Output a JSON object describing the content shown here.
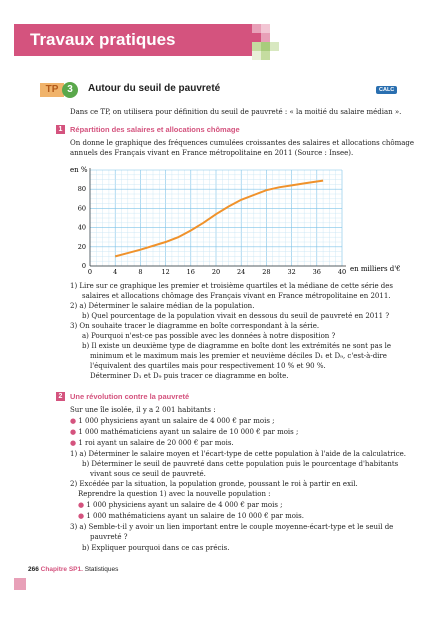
{
  "header": {
    "title": "Travaux pratiques"
  },
  "tp": {
    "label": "TP",
    "number": "3",
    "title": "Autour du seuil de pauvreté",
    "badge": "CALC"
  },
  "intro": "Dans ce TP, on utilisera pour définition du seuil de pauvreté : « la moitié du salaire médian ».",
  "section1": {
    "number": "1",
    "title": "Répartition des salaires et allocations chômage",
    "line1": "On donne le graphique des fréquences cumulées croissantes des salaires et allocations chômage",
    "line2": "annuels des Français vivant en France métropolitaine en 2011 (Source : Insee)."
  },
  "chart_data": {
    "type": "line",
    "ylabel": "en %",
    "xlabel": "en milliers d'€",
    "xlim": [
      0,
      40
    ],
    "ylim": [
      0,
      100
    ],
    "x_ticks": [
      "0",
      "4",
      "8",
      "12",
      "16",
      "20",
      "24",
      "28",
      "32",
      "36",
      "40"
    ],
    "y_ticks": [
      "0",
      "20",
      "40",
      "60",
      "80"
    ],
    "grid": true,
    "color": "#f0922b",
    "x": [
      4,
      8,
      12,
      14,
      16,
      18,
      20,
      22,
      24,
      26,
      28,
      30,
      32,
      34,
      36,
      37
    ],
    "y": [
      10,
      17,
      25,
      30,
      37,
      45,
      54,
      62,
      69,
      74,
      79,
      82,
      84,
      86,
      88,
      89
    ]
  },
  "questions1": {
    "q1a": "1) Lire sur ce graphique les premier et troisième quartiles et la médiane de cette série des",
    "q1b": "salaires et allocations chômage des Français vivant en France métropolitaine en 2011.",
    "q2a": "2) a) Déterminer le salaire médian de la population.",
    "q2b": "b) Quel pourcentage de la population vivait en dessous du seuil de pauvreté en 2011 ?",
    "q3": "3) On souhaite tracer le diagramme en boîte correspondant à la série.",
    "q3a": "a) Pourquoi n'est-ce pas possible avec les données à notre disposition ?",
    "q3b1": "b) Il existe un deuxième type de diagramme en boîte dont les extrémités ne sont pas le",
    "q3b2": "minimum et le maximum mais les premier et neuvième déciles D₁ et D₉, c'est-à-dire",
    "q3b3": "l'équivalent des quartiles mais pour respectivement 10 % et 90 %.",
    "q3b4": "Déterminer D₁ et D₉ puis tracer ce diagramme en boîte."
  },
  "section2": {
    "number": "2",
    "title": "Une révolution contre la pauvreté",
    "intro": "Sur une île isolée, il y a 2 001 habitants :",
    "b1": "1 000 physiciens ayant un salaire de 4 000 € par mois ;",
    "b2": "1 000 mathématiciens ayant un salaire de 10 000 € par mois ;",
    "b3": "1 roi ayant un salaire de 20 000 € par mois.",
    "q1a": "1) a) Déterminer le salaire moyen et l'écart-type de cette population à l'aide de la calculatrice.",
    "q1b1": "b) Déterminer le seuil de pauvreté dans cette population puis le pourcentage d'habitants",
    "q1b2": "vivant sous ce seuil de pauvreté.",
    "q2": "2) Excédée par la situation, la population gronde, poussant le roi à partir en exil.",
    "q2b": "Reprendre la question 1) avec la nouvelle population :",
    "b4": "1 000 physiciens ayant un salaire de 4 000 € par mois ;",
    "b5": "1 000 mathématiciens ayant un salaire de 10 000 € par mois.",
    "q3a1": "3) a) Semble-t-il y avoir un lien important entre le couple moyenne-écart-type et le seuil de",
    "q3a2": "pauvreté ?",
    "q3b": "b) Expliquer pourquoi dans ce cas précis."
  },
  "footer": {
    "page": "266",
    "chapter": "Chapitre SP1.",
    "topic": "Statistiques"
  }
}
